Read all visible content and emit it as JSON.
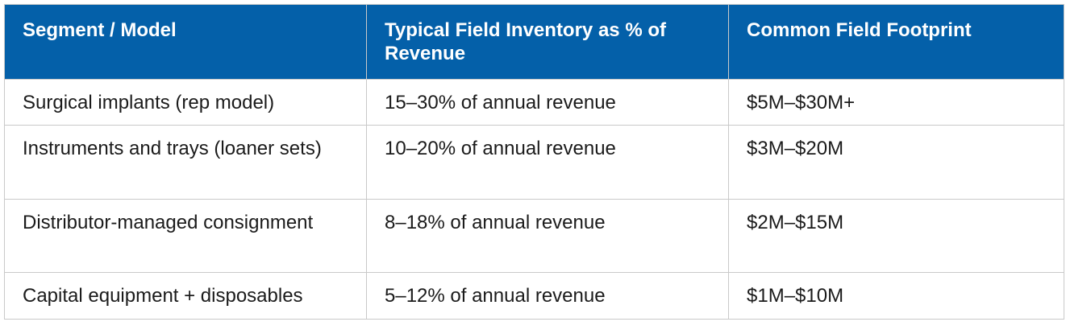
{
  "table": {
    "headers": [
      "Segment / Model",
      "Typical Field Inventory as % of Revenue",
      "Common Field Footprint"
    ],
    "rows": [
      [
        "Surgical implants (rep model)",
        "15–30% of annual revenue",
        "$5M–$30M+"
      ],
      [
        "Instruments and trays (loaner sets)",
        "10–20% of annual revenue",
        "$3M–$20M"
      ],
      [
        "Distributor-managed consignment",
        "8–18% of annual revenue",
        "$2M–$15M"
      ],
      [
        "Capital equipment + disposables",
        "5–12% of annual revenue",
        "$1M–$10M"
      ]
    ],
    "header_color": "#0460a9",
    "header_text_color": "#ffffff",
    "border_color": "#c9c9c9"
  }
}
